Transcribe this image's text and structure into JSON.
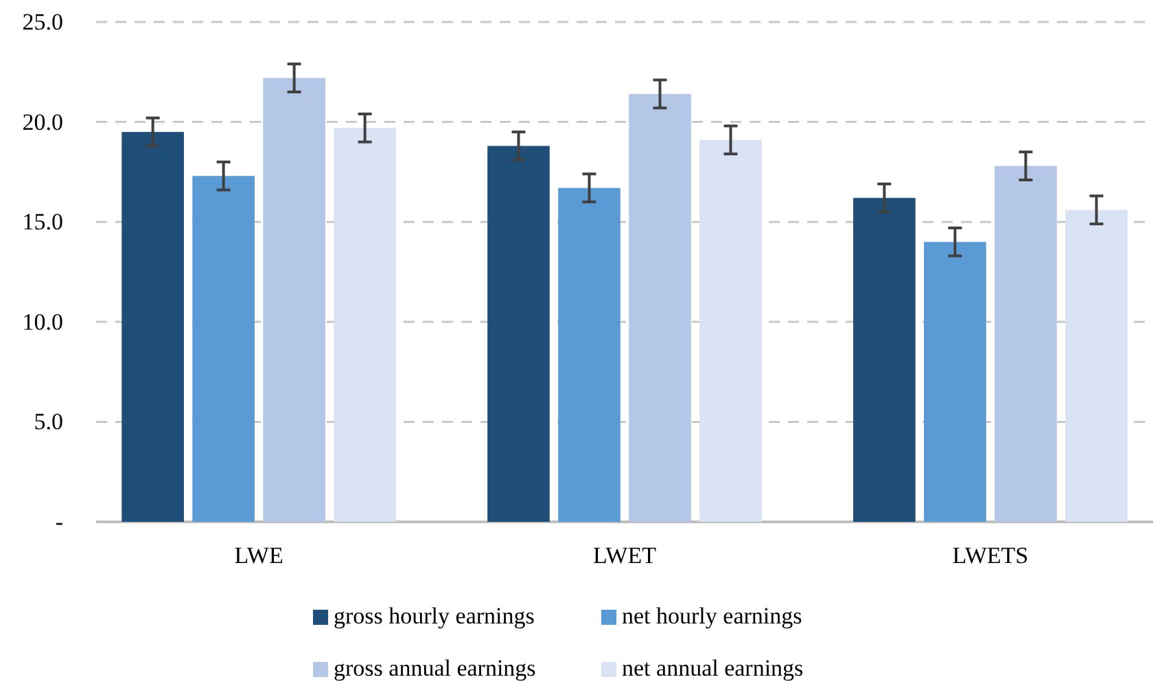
{
  "chart_data": {
    "type": "bar",
    "categories": [
      "LWE",
      "LWET",
      "LWETS"
    ],
    "series": [
      {
        "name": "gross hourly earnings",
        "color": "#1f4e79",
        "values": [
          19.5,
          18.8,
          16.2
        ],
        "errors": [
          0.7,
          0.7,
          0.7
        ]
      },
      {
        "name": "net hourly earnings",
        "color": "#5b9bd5",
        "values": [
          17.3,
          16.7,
          14.0
        ],
        "errors": [
          0.7,
          0.7,
          0.7
        ]
      },
      {
        "name": "gross annual earnings",
        "color": "#b4c7e7",
        "values": [
          22.2,
          21.4,
          17.8
        ],
        "errors": [
          0.7,
          0.7,
          0.7
        ]
      },
      {
        "name": "net annual earnings",
        "color": "#dae3f3",
        "values": [
          19.7,
          19.1,
          15.6
        ],
        "errors": [
          0.7,
          0.7,
          0.7
        ]
      }
    ],
    "ylim": [
      0,
      25
    ],
    "yticks": [
      {
        "value": 0,
        "label": "-"
      },
      {
        "value": 5,
        "label": "5.0"
      },
      {
        "value": 10,
        "label": "10.0"
      },
      {
        "value": 15,
        "label": "15.0"
      },
      {
        "value": 20,
        "label": "20.0"
      },
      {
        "value": 25,
        "label": "25.0"
      }
    ],
    "grid": "y",
    "legend": "bottom"
  }
}
